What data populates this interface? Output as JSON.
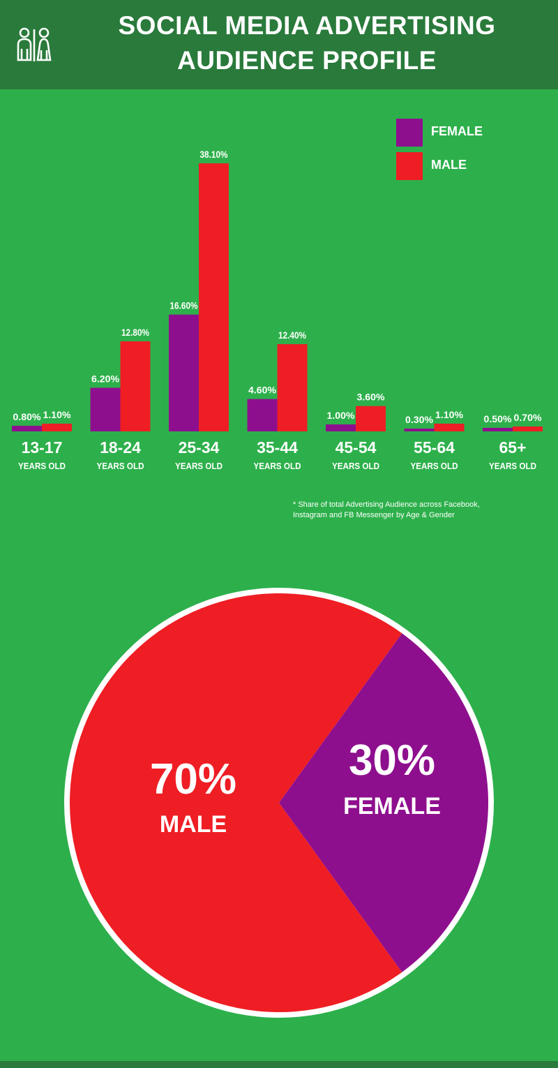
{
  "header": {
    "title_line1": "SOCIAL MEDIA ADVERTISING",
    "title_line2": "AUDIENCE PROFILE",
    "icon": "people-icon"
  },
  "legend": {
    "female_label": "FEMALE",
    "male_label": "MALE"
  },
  "colors": {
    "background": "#2db04b",
    "header": "#2a7a3b",
    "female": "#8e0f8e",
    "male": "#ee1e24",
    "text": "#ffffff"
  },
  "footnote": {
    "line1": "* Share of total Advertising Audience across Facebook,",
    "line2": "Instagram and FB Messenger by Age & Gender"
  },
  "chart_data": [
    {
      "type": "bar",
      "categories": [
        "13-17",
        "18-24",
        "25-34",
        "35-44",
        "45-54",
        "55-64",
        "65+"
      ],
      "category_sublabel": "YEARS OLD",
      "series": [
        {
          "name": "FEMALE",
          "values": [
            0.8,
            6.2,
            16.6,
            4.6,
            1.0,
            0.3,
            0.5
          ],
          "labels": [
            "0.80%",
            "6.20%",
            "16.60%",
            "4.60%",
            "1.00%",
            "0.30%",
            "0.50%"
          ]
        },
        {
          "name": "MALE",
          "values": [
            1.1,
            12.8,
            38.1,
            12.4,
            3.6,
            1.1,
            0.7
          ],
          "labels": [
            "1.10%",
            "12.80%",
            "38.10%",
            "12.40%",
            "3.60%",
            "1.10%",
            "0.70%"
          ]
        }
      ],
      "legend_position": "top-right",
      "grid": false
    },
    {
      "type": "pie",
      "slices": [
        {
          "label": "MALE",
          "value": 70,
          "display": "70%"
        },
        {
          "label": "FEMALE",
          "value": 30,
          "display": "30%"
        }
      ]
    }
  ]
}
